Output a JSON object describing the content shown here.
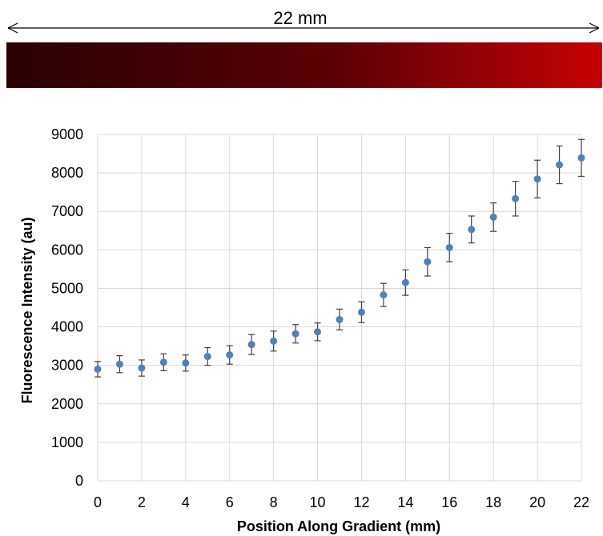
{
  "scale_bar": {
    "label": "22 mm"
  },
  "colors": {
    "gradient_start": "#2a0204",
    "gradient_mid": "#5a0006",
    "gradient_end": "#c60205",
    "marker": "#4f81bd",
    "error_bar": "#404040",
    "grid": "#d9d9d9"
  },
  "chart_data": {
    "type": "scatter",
    "xlabel": "Position Along Gradient (mm)",
    "ylabel": "Fluorescence Intensity (au)",
    "xlim": [
      0,
      22
    ],
    "ylim": [
      0,
      9000
    ],
    "x_ticks": [
      0,
      2,
      4,
      6,
      8,
      10,
      12,
      14,
      16,
      18,
      20,
      22
    ],
    "y_ticks": [
      0,
      1000,
      2000,
      3000,
      4000,
      5000,
      6000,
      7000,
      8000,
      9000
    ],
    "grid": true,
    "x": [
      0,
      1,
      2,
      3,
      4,
      5,
      6,
      7,
      8,
      9,
      10,
      11,
      12,
      13,
      14,
      15,
      16,
      17,
      18,
      19,
      20,
      21,
      22
    ],
    "y": [
      2900,
      3030,
      2930,
      3080,
      3060,
      3230,
      3270,
      3540,
      3630,
      3820,
      3870,
      4190,
      4380,
      4830,
      5150,
      5690,
      6060,
      6530,
      6850,
      7330,
      7840,
      8210,
      8390
    ],
    "y_err": [
      200,
      220,
      210,
      220,
      210,
      230,
      240,
      260,
      260,
      240,
      230,
      270,
      270,
      300,
      330,
      370,
      370,
      350,
      370,
      450,
      490,
      490,
      480
    ]
  }
}
